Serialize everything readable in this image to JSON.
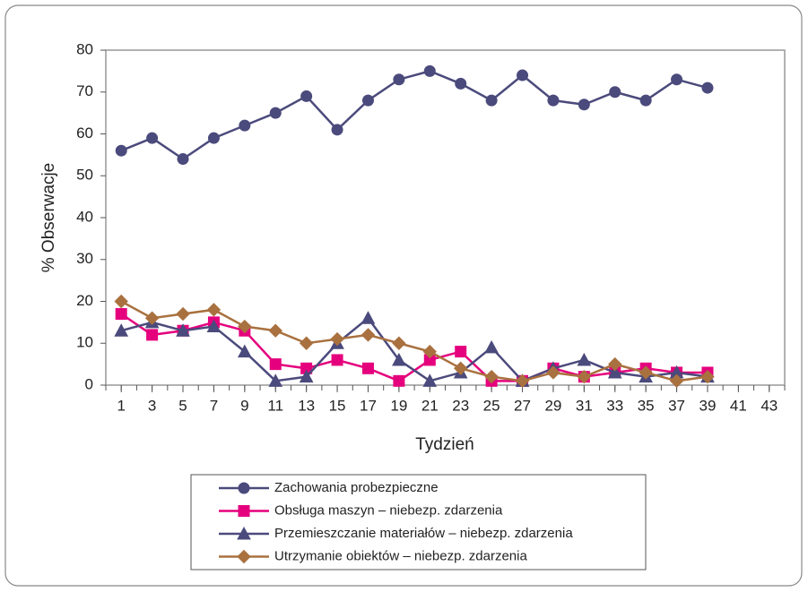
{
  "chart_data": {
    "type": "line",
    "x_label": "Tydzień",
    "y_label": "% Obserwacje",
    "x": [
      1,
      3,
      5,
      7,
      9,
      11,
      13,
      15,
      17,
      19,
      21,
      23,
      25,
      27,
      29,
      31,
      33,
      35,
      37,
      39
    ],
    "xlim": [
      0,
      44
    ],
    "xticks": [
      1,
      3,
      5,
      7,
      9,
      11,
      13,
      15,
      17,
      19,
      21,
      23,
      25,
      27,
      29,
      31,
      33,
      35,
      37,
      39,
      41,
      43
    ],
    "ylim": [
      0,
      80
    ],
    "yticks": [
      0,
      10,
      20,
      30,
      40,
      50,
      60,
      70,
      80
    ],
    "series": [
      {
        "name": "Zachowania probezpieczne",
        "color": "#4b4a7c",
        "marker": "circle",
        "values": [
          56,
          59,
          54,
          59,
          62,
          65,
          69,
          61,
          68,
          73,
          75,
          72,
          68,
          74,
          68,
          67,
          70,
          68,
          73,
          71
        ]
      },
      {
        "name": "Obsługa maszyn – niebezp. zdarzenia",
        "color": "#e5007d",
        "marker": "square",
        "values": [
          17,
          12,
          13,
          15,
          13,
          5,
          4,
          6,
          4,
          1,
          6,
          8,
          1,
          1,
          4,
          2,
          3,
          4,
          3,
          3
        ]
      },
      {
        "name": "Przemieszczanie materiałów – niebezp. zdarzenia",
        "color": "#4b4a7c",
        "marker": "triangle",
        "values": [
          13,
          15,
          13,
          14,
          8,
          1,
          2,
          10,
          16,
          6,
          1,
          3,
          9,
          1,
          4,
          6,
          3,
          2,
          3,
          2
        ]
      },
      {
        "name": "Utrzymanie obiektów – niebezp. zdarzenia",
        "color": "#a9713f",
        "marker": "diamond",
        "values": [
          20,
          16,
          17,
          18,
          14,
          13,
          10,
          11,
          12,
          10,
          8,
          4,
          2,
          1,
          3,
          2,
          5,
          3,
          1,
          2
        ]
      }
    ]
  }
}
